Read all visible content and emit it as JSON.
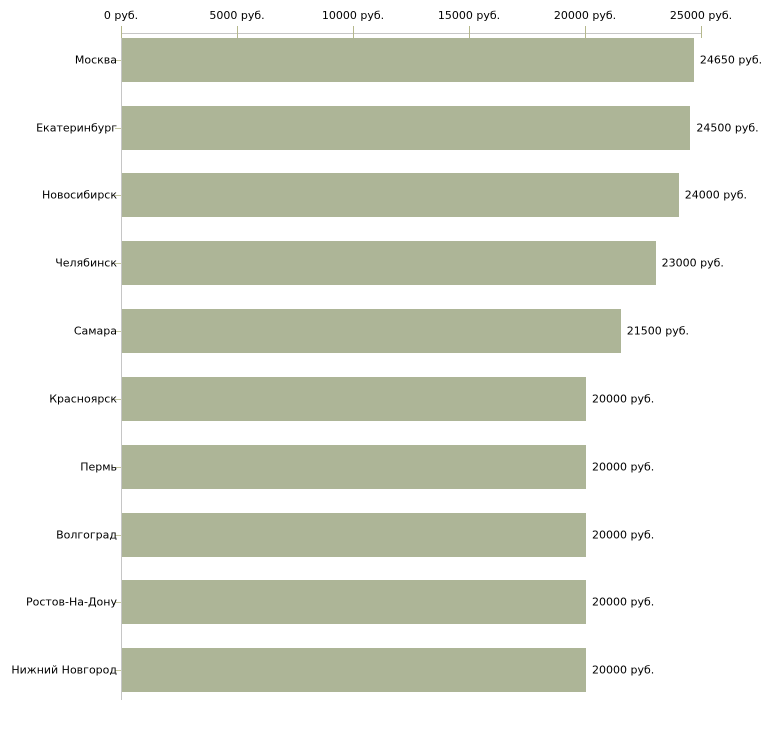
{
  "chart_data": {
    "type": "bar",
    "orientation": "horizontal",
    "title": "",
    "xlabel": "",
    "ylabel": "",
    "grid": false,
    "legend": false,
    "categories": [
      "Москва",
      "Екатеринбург",
      "Новосибирск",
      "Челябинск",
      "Самара",
      "Красноярск",
      "Пермь",
      "Волгоград",
      "Ростов-На-Дону",
      "Нижний Новгород"
    ],
    "values": [
      24650,
      24500,
      24000,
      23000,
      21500,
      20000,
      20000,
      20000,
      20000,
      20000
    ],
    "value_labels": [
      "24650 руб.",
      "24500 руб.",
      "24000 руб.",
      "23000 руб.",
      "21500 руб.",
      "20000 руб.",
      "20000 руб.",
      "20000 руб.",
      "20000 руб.",
      "20000 руб."
    ],
    "x_axis": {
      "position": "top",
      "range": [
        0,
        25000
      ],
      "ticks": [
        0,
        5000,
        10000,
        15000,
        20000,
        25000
      ],
      "tick_labels": [
        "0 руб.",
        "5000 руб.",
        "10000 руб.",
        "15000 руб.",
        "20000 руб.",
        "25000 руб."
      ]
    },
    "colors": {
      "bar_fill": "#adb597",
      "axis_line": "#c6c6c6",
      "x_tick_mark": "#b5b88c",
      "category_tick_mark": "#c5c7a0",
      "text": "#000000",
      "background": "#ffffff"
    }
  }
}
